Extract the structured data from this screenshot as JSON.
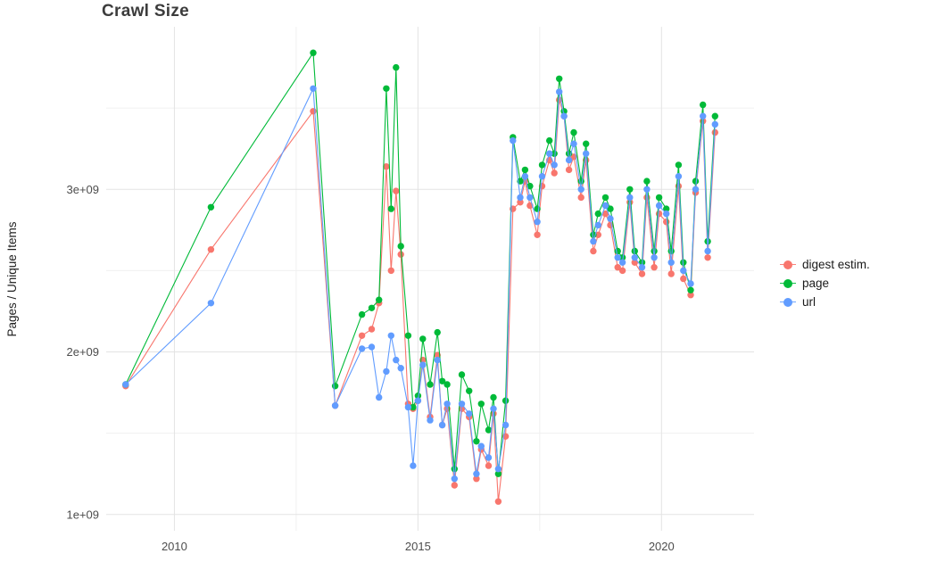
{
  "chart_data": {
    "type": "line",
    "title": "Crawl Size",
    "xlabel": "",
    "ylabel": "Pages / Unique Items",
    "values_unit": "items x 1e9",
    "grid": true,
    "legend_position": "right",
    "x_range": [
      2008.6,
      2021.9
    ],
    "y_range": [
      0.9,
      4.0
    ],
    "x_ticks": [
      {
        "value": 2010,
        "label": "2010"
      },
      {
        "value": 2015,
        "label": "2015"
      },
      {
        "value": 2020,
        "label": "2020"
      }
    ],
    "y_ticks": [
      {
        "value": 1,
        "label": "1e+09"
      },
      {
        "value": 2,
        "label": "2e+09"
      },
      {
        "value": 3,
        "label": "3e+09"
      }
    ],
    "x_minor": [
      2012.5,
      2017.5
    ],
    "y_minor": [
      1.5,
      2.5,
      3.5
    ],
    "x": [
      2009.0,
      2010.75,
      2012.85,
      2013.3,
      2013.85,
      2014.05,
      2014.2,
      2014.35,
      2014.45,
      2014.55,
      2014.65,
      2014.8,
      2014.9,
      2015.0,
      2015.1,
      2015.25,
      2015.4,
      2015.5,
      2015.6,
      2015.75,
      2015.9,
      2016.05,
      2016.2,
      2016.3,
      2016.45,
      2016.55,
      2016.65,
      2016.8,
      2016.95,
      2017.1,
      2017.2,
      2017.3,
      2017.45,
      2017.55,
      2017.7,
      2017.8,
      2017.9,
      2018.0,
      2018.1,
      2018.2,
      2018.35,
      2018.45,
      2018.6,
      2018.7,
      2018.85,
      2018.95,
      2019.1,
      2019.2,
      2019.35,
      2019.45,
      2019.6,
      2019.7,
      2019.85,
      2019.95,
      2020.1,
      2020.2,
      2020.35,
      2020.45,
      2020.6,
      2020.7,
      2020.85,
      2020.95,
      2021.1
    ],
    "series": [
      {
        "name": "digest estim.",
        "color": "#F8766D",
        "values": [
          1.79,
          2.63,
          3.48,
          1.67,
          2.1,
          2.14,
          2.3,
          3.14,
          2.5,
          2.99,
          2.6,
          1.68,
          1.65,
          1.7,
          1.95,
          1.6,
          1.98,
          1.55,
          1.65,
          1.18,
          1.65,
          1.6,
          1.22,
          1.4,
          1.3,
          1.62,
          1.08,
          1.48,
          2.88,
          2.92,
          3.05,
          2.9,
          2.72,
          3.02,
          3.18,
          3.1,
          3.55,
          3.45,
          3.12,
          3.2,
          2.95,
          3.18,
          2.62,
          2.72,
          2.85,
          2.78,
          2.52,
          2.5,
          2.92,
          2.55,
          2.48,
          2.95,
          2.52,
          2.85,
          2.8,
          2.48,
          3.02,
          2.45,
          2.35,
          2.98,
          3.42,
          2.58,
          3.35
        ]
      },
      {
        "name": "page",
        "color": "#00BA38",
        "values": [
          1.8,
          2.89,
          3.84,
          1.79,
          2.23,
          2.27,
          2.32,
          3.62,
          2.88,
          3.75,
          2.65,
          2.1,
          1.66,
          1.73,
          2.08,
          1.8,
          2.12,
          1.82,
          1.8,
          1.28,
          1.86,
          1.76,
          1.45,
          1.68,
          1.52,
          1.72,
          1.25,
          1.7,
          3.32,
          3.05,
          3.12,
          3.02,
          2.88,
          3.15,
          3.3,
          3.22,
          3.68,
          3.48,
          3.22,
          3.35,
          3.05,
          3.28,
          2.72,
          2.85,
          2.95,
          2.88,
          2.62,
          2.58,
          3.0,
          2.62,
          2.55,
          3.05,
          2.62,
          2.95,
          2.88,
          2.62,
          3.15,
          2.55,
          2.38,
          3.05,
          3.52,
          2.68,
          3.45
        ]
      },
      {
        "name": "url",
        "color": "#619CFF",
        "values": [
          1.8,
          2.3,
          3.62,
          1.67,
          2.02,
          2.03,
          1.72,
          1.88,
          2.1,
          1.95,
          1.9,
          1.66,
          1.3,
          1.7,
          1.92,
          1.58,
          1.95,
          1.55,
          1.68,
          1.22,
          1.68,
          1.62,
          1.25,
          1.42,
          1.35,
          1.65,
          1.28,
          1.55,
          3.3,
          2.95,
          3.08,
          2.95,
          2.8,
          3.08,
          3.22,
          3.15,
          3.6,
          3.45,
          3.18,
          3.28,
          3.0,
          3.22,
          2.68,
          2.78,
          2.9,
          2.82,
          2.58,
          2.55,
          2.95,
          2.58,
          2.52,
          3.0,
          2.58,
          2.9,
          2.85,
          2.55,
          3.08,
          2.5,
          2.42,
          3.0,
          3.45,
          2.62,
          3.4
        ]
      }
    ]
  },
  "style": {
    "grid_major_color": "#e3e3e3",
    "grid_minor_color": "#f0f0f0",
    "tick_label_color": "#4d4d4d"
  }
}
